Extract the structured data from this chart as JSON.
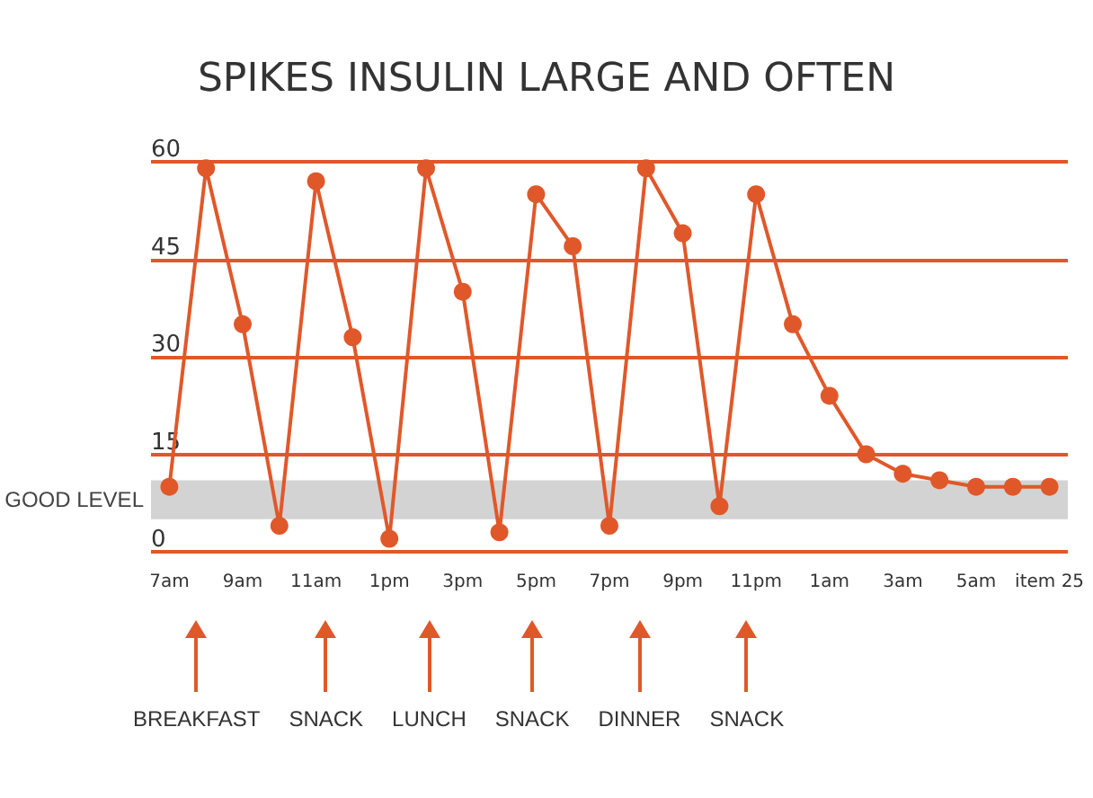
{
  "chart_data": {
    "type": "line",
    "title": "SPIKES INSULIN LARGE AND OFTEN",
    "categories": [
      "7am",
      null,
      "9am",
      null,
      "11am",
      null,
      "1pm",
      null,
      "3pm",
      null,
      "5pm",
      null,
      "7pm",
      null,
      "9pm",
      null,
      "11pm",
      null,
      "1am",
      null,
      "3am",
      null,
      "5am",
      null,
      "item 25"
    ],
    "values": [
      10,
      59,
      35,
      4,
      57,
      33,
      2,
      59,
      40,
      3,
      55,
      47,
      4,
      59,
      49,
      7,
      55,
      35,
      24,
      15,
      12,
      11,
      10,
      10,
      10
    ],
    "color": "#e0582a",
    "ylim": [
      0,
      60
    ],
    "yticks": [
      0,
      15,
      30,
      45,
      60
    ],
    "grid": "y",
    "marker": "circle",
    "bands": [
      {
        "axis": "y",
        "from": 5,
        "to": 11,
        "label": "GOOD LEVEL",
        "color": "#d3d3d3"
      }
    ],
    "annotations": [
      "BREAKFAST",
      "SNACK",
      "LUNCH",
      "SNACK",
      "DINNER",
      "SNACK"
    ]
  }
}
